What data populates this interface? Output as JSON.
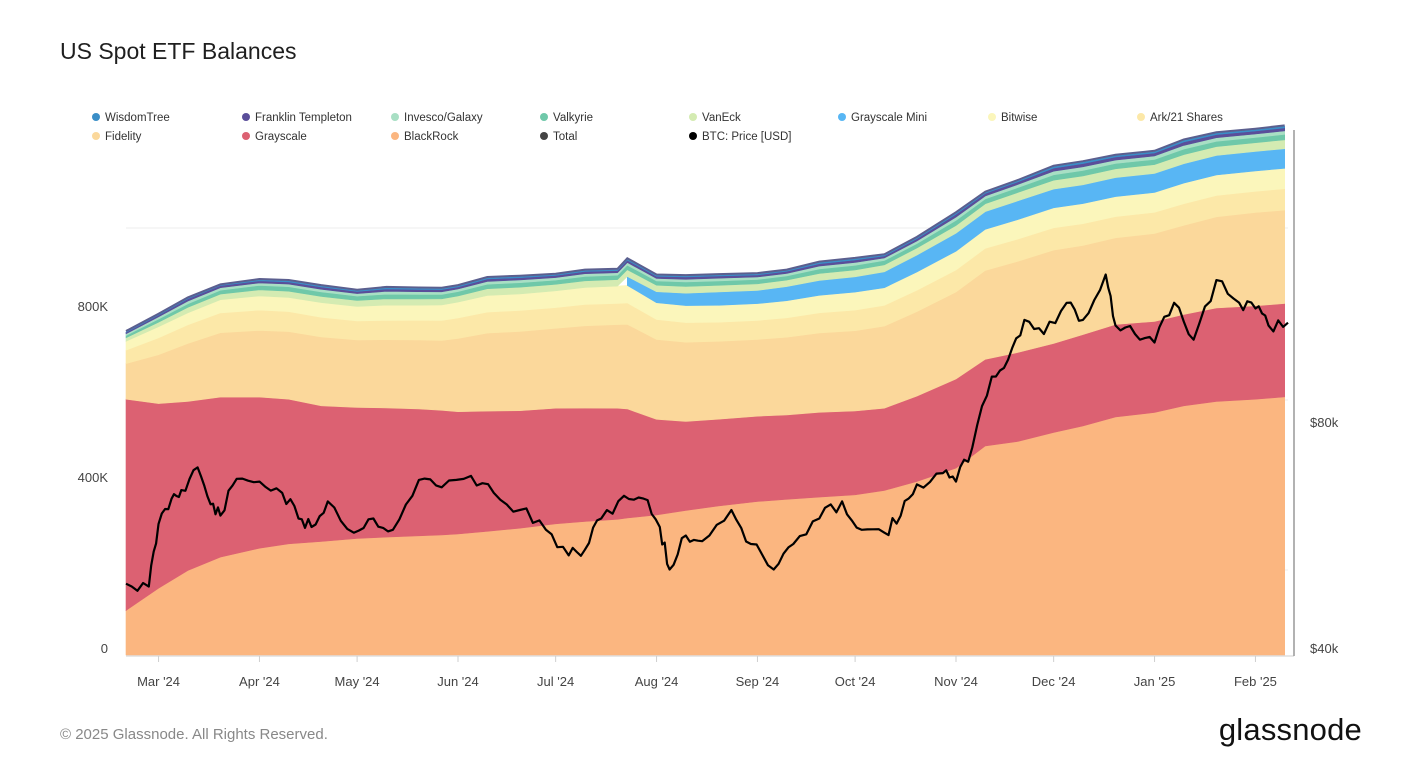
{
  "title": "US Spot ETF Balances",
  "footer": {
    "copyright": "© 2025 Glassnode. All Rights Reserved.",
    "logo": "glassnode"
  },
  "chart_data": {
    "type": "area",
    "stacked": true,
    "x": [
      "2024-02-20",
      "2024-03-01",
      "2024-03-10",
      "2024-03-20",
      "2024-04-01",
      "2024-04-10",
      "2024-04-20",
      "2024-05-01",
      "2024-05-10",
      "2024-05-20",
      "2024-05-27",
      "2024-06-01",
      "2024-06-10",
      "2024-06-20",
      "2024-07-01",
      "2024-07-10",
      "2024-07-20",
      "2024-07-23",
      "2024-08-01",
      "2024-08-10",
      "2024-08-20",
      "2024-09-01",
      "2024-09-10",
      "2024-09-20",
      "2024-10-01",
      "2024-10-10",
      "2024-10-20",
      "2024-11-01",
      "2024-11-10",
      "2024-11-20",
      "2024-12-01",
      "2024-12-10",
      "2024-12-20",
      "2025-01-01",
      "2025-01-10",
      "2025-01-20",
      "2025-02-01",
      "2025-02-10"
    ],
    "x_ticks": [
      "Mar '24",
      "Apr '24",
      "May '24",
      "Jun '24",
      "Jul '24",
      "Aug '24",
      "Sep '24",
      "Oct '24",
      "Nov '24",
      "Dec '24",
      "Jan '25",
      "Feb '25"
    ],
    "y_left": {
      "ticks": [
        "0",
        "400K",
        "800K"
      ],
      "range": [
        0,
        1180000
      ]
    },
    "y_right": {
      "ticks": [
        "$40k",
        "$80k"
      ],
      "range": [
        40000,
        120000
      ],
      "note": "BTC: Price [USD]"
    },
    "legend_placement": "top",
    "series": [
      {
        "name": "BlackRock",
        "color": "#fbb680",
        "values": [
          100000,
          150000,
          190000,
          220000,
          240000,
          250000,
          255000,
          262000,
          265000,
          268000,
          270000,
          272000,
          278000,
          285000,
          295000,
          300000,
          305000,
          308000,
          315000,
          325000,
          335000,
          345000,
          350000,
          355000,
          360000,
          370000,
          390000,
          420000,
          470000,
          480000,
          500000,
          515000,
          535000,
          545000,
          560000,
          570000,
          575000,
          580000
        ]
      },
      {
        "name": "Grayscale",
        "color": "#dc6172",
        "values": [
          475000,
          415000,
          380000,
          360000,
          340000,
          325000,
          305000,
          295000,
          290000,
          285000,
          280000,
          275000,
          270000,
          264000,
          260000,
          255000,
          250000,
          245000,
          215000,
          200000,
          195000,
          192000,
          190000,
          190000,
          188000,
          185000,
          192000,
          200000,
          195000,
          200000,
          200000,
          205000,
          208000,
          205000,
          205000,
          210000,
          210000,
          210000
        ]
      },
      {
        "name": "Fidelity",
        "color": "#fbd89b",
        "values": [
          80000,
          110000,
          130000,
          145000,
          150000,
          152000,
          155000,
          152000,
          153000,
          155000,
          157000,
          165000,
          175000,
          178000,
          180000,
          185000,
          188000,
          190000,
          180000,
          178000,
          175000,
          173000,
          175000,
          178000,
          180000,
          185000,
          190000,
          195000,
          200000,
          205000,
          210000,
          200000,
          195000,
          198000,
          200000,
          205000,
          210000,
          210000
        ]
      },
      {
        "name": "Ark/21 Shares",
        "color": "#fce8a8",
        "values": [
          30000,
          38000,
          42000,
          45000,
          46000,
          45000,
          44000,
          43000,
          43000,
          44000,
          45000,
          46000,
          47000,
          47000,
          47000,
          48000,
          48000,
          48000,
          45000,
          44000,
          43000,
          43000,
          44000,
          45000,
          46000,
          47000,
          48000,
          49000,
          50000,
          50000,
          50000,
          49000,
          48000,
          48000,
          48000,
          48000,
          48000,
          48000
        ]
      },
      {
        "name": "Bitwise",
        "color": "#fbf6bb",
        "values": [
          20000,
          25000,
          27000,
          30000,
          32000,
          32000,
          33000,
          33000,
          34000,
          34000,
          35000,
          36000,
          37000,
          37000,
          38000,
          38000,
          39000,
          39000,
          38000,
          38000,
          38000,
          38000,
          39000,
          39000,
          40000,
          40000,
          41000,
          42000,
          43000,
          44000,
          45000,
          45000,
          45000,
          45000,
          46000,
          46000,
          46000,
          46000
        ]
      },
      {
        "name": "Grayscale Mini",
        "color": "#58b6f4",
        "values": [
          0,
          0,
          0,
          0,
          0,
          0,
          0,
          0,
          0,
          0,
          0,
          0,
          0,
          0,
          0,
          0,
          0,
          20000,
          25000,
          28000,
          30000,
          30000,
          32000,
          33000,
          34000,
          36000,
          38000,
          40000,
          40000,
          42000,
          42000,
          42000,
          43000,
          43000,
          43000,
          44000,
          44000,
          44000
        ]
      },
      {
        "name": "VanEck",
        "color": "#d4ebb2",
        "values": [
          8000,
          10000,
          12000,
          13000,
          14000,
          14000,
          14000,
          14000,
          14000,
          14000,
          14000,
          14000,
          15000,
          15000,
          15000,
          15000,
          15000,
          15000,
          15000,
          15000,
          15000,
          15000,
          15000,
          15000,
          15000,
          16000,
          16000,
          17000,
          18000,
          19000,
          20000,
          20000,
          20000,
          20000,
          20000,
          20000,
          20000,
          20000
        ]
      },
      {
        "name": "Valkyrie",
        "color": "#6fc8a9",
        "values": [
          5000,
          7000,
          8000,
          9000,
          10000,
          10000,
          10000,
          10000,
          10000,
          10000,
          10000,
          10000,
          10000,
          10000,
          10000,
          10000,
          10000,
          10000,
          10000,
          10000,
          10000,
          10000,
          10000,
          10000,
          10000,
          10000,
          10000,
          11000,
          11000,
          11000,
          12000,
          12000,
          12000,
          12000,
          12000,
          12000,
          12000,
          12000
        ]
      },
      {
        "name": "Invesco/Galaxy",
        "color": "#a8dfc4",
        "values": [
          4000,
          5000,
          6000,
          6000,
          6000,
          6000,
          6000,
          6000,
          6000,
          6000,
          6000,
          6000,
          6000,
          6000,
          6000,
          6000,
          6000,
          6000,
          6000,
          6000,
          6000,
          6000,
          6000,
          6000,
          6000,
          6000,
          6000,
          7000,
          7000,
          7000,
          8000,
          8000,
          8000,
          8000,
          8000,
          8000,
          8000,
          8000
        ]
      },
      {
        "name": "Franklin Templeton",
        "color": "#5a4e9a",
        "values": [
          3000,
          4000,
          5000,
          5000,
          5000,
          5000,
          5000,
          5000,
          5000,
          5000,
          5000,
          5000,
          5000,
          5000,
          5000,
          5000,
          5000,
          5000,
          5000,
          5000,
          5000,
          5000,
          5000,
          5000,
          5000,
          5000,
          5000,
          6000,
          6000,
          6000,
          7000,
          7000,
          7000,
          7000,
          7000,
          7000,
          7000,
          7000
        ]
      },
      {
        "name": "WisdomTree",
        "color": "#3a8ec7",
        "values": [
          1000,
          1000,
          1000,
          1000,
          2000,
          2000,
          2000,
          2000,
          2000,
          2000,
          2000,
          2000,
          2000,
          2000,
          2000,
          2000,
          2000,
          2000,
          2000,
          2000,
          2000,
          2000,
          2000,
          2000,
          2000,
          2000,
          2000,
          2000,
          2000,
          2000,
          3000,
          3000,
          3000,
          3000,
          3000,
          3000,
          3000,
          3000
        ]
      }
    ],
    "total": {
      "name": "Total",
      "color": "#444444"
    },
    "btc_price": {
      "name": "BTC: Price [USD]",
      "color": "#000000",
      "x": [
        "2024-02-20",
        "2024-02-27",
        "2024-03-01",
        "2024-03-05",
        "2024-03-08",
        "2024-03-13",
        "2024-03-17",
        "2024-03-20",
        "2024-03-25",
        "2024-04-01",
        "2024-04-08",
        "2024-04-13",
        "2024-04-17",
        "2024-04-22",
        "2024-04-30",
        "2024-05-06",
        "2024-05-12",
        "2024-05-20",
        "2024-05-27",
        "2024-06-05",
        "2024-06-12",
        "2024-06-20",
        "2024-06-28",
        "2024-07-05",
        "2024-07-10",
        "2024-07-15",
        "2024-07-22",
        "2024-07-28",
        "2024-08-02",
        "2024-08-05",
        "2024-08-10",
        "2024-08-15",
        "2024-08-24",
        "2024-08-30",
        "2024-09-06",
        "2024-09-12",
        "2024-09-20",
        "2024-09-27",
        "2024-10-03",
        "2024-10-10",
        "2024-10-15",
        "2024-10-20",
        "2024-10-28",
        "2024-11-01",
        "2024-11-06",
        "2024-11-12",
        "2024-11-17",
        "2024-11-22",
        "2024-11-28",
        "2024-12-05",
        "2024-12-10",
        "2024-12-17",
        "2024-12-20",
        "2024-12-26",
        "2025-01-01",
        "2025-01-07",
        "2025-01-13",
        "2025-01-20",
        "2025-01-27",
        "2025-02-01",
        "2025-02-05",
        "2025-02-11"
      ],
      "values": [
        51500,
        51000,
        62000,
        66500,
        68000,
        72000,
        65500,
        63500,
        70000,
        69500,
        67500,
        63000,
        61500,
        66000,
        60500,
        63000,
        61000,
        69800,
        68500,
        70500,
        67500,
        64500,
        61000,
        56500,
        57500,
        63000,
        67000,
        66500,
        61500,
        54000,
        60000,
        59000,
        64500,
        58500,
        54000,
        58500,
        63000,
        66000,
        61000,
        60500,
        63500,
        69000,
        71000,
        69500,
        75500,
        88000,
        91000,
        98000,
        95500,
        101000,
        98000,
        106000,
        97000,
        95500,
        94000,
        101000,
        94500,
        105000,
        101000,
        100000,
        97000,
        97500
      ]
    }
  }
}
